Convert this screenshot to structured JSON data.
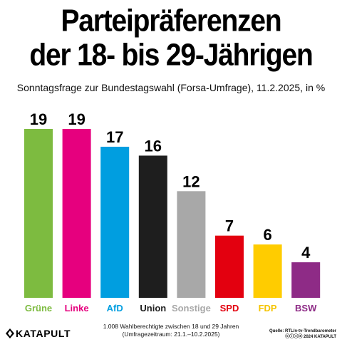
{
  "header": {
    "title_line1": "Parteipräferenzen",
    "title_line2": "der 18- bis 29-Jährigen",
    "subtitle": "Sonntagsfrage zur Bundestagswahl (Forsa-Umfrage), 11.2.2025, in %"
  },
  "footer": {
    "brand": "KATAPULT",
    "note_line1": "1.008 Wahlberechtigte zwischen 18 und 29 Jahren",
    "note_line2": "(Umfragezeitraum: 21.1.–10.2.2025)",
    "source_line1": "Quelle: RTL/n-tv-Trendbarometer",
    "source_line2": "2024 KATAPULT"
  },
  "chart_data": {
    "type": "bar",
    "title": "Parteipräferenzen der 18- bis 29-Jährigen",
    "categories": [
      "Grüne",
      "Linke",
      "AfD",
      "Union",
      "Sonstige",
      "SPD",
      "FDP",
      "BSW"
    ],
    "values": [
      19,
      19,
      17,
      16,
      12,
      7,
      6,
      4
    ],
    "colors": [
      "#7dbb40",
      "#e6007e",
      "#009ee0",
      "#1e1e1e",
      "#a8a8a8",
      "#e3000f",
      "#ffcc00",
      "#8e2b86"
    ],
    "label_colors": [
      "#7dbb40",
      "#e6007e",
      "#009ee0",
      "#1e1e1e",
      "#a8a8a8",
      "#e3000f",
      "#f5c400",
      "#8e2b86"
    ],
    "unit": "%",
    "ylim": [
      0,
      19
    ],
    "grid": false,
    "legend": "none"
  }
}
